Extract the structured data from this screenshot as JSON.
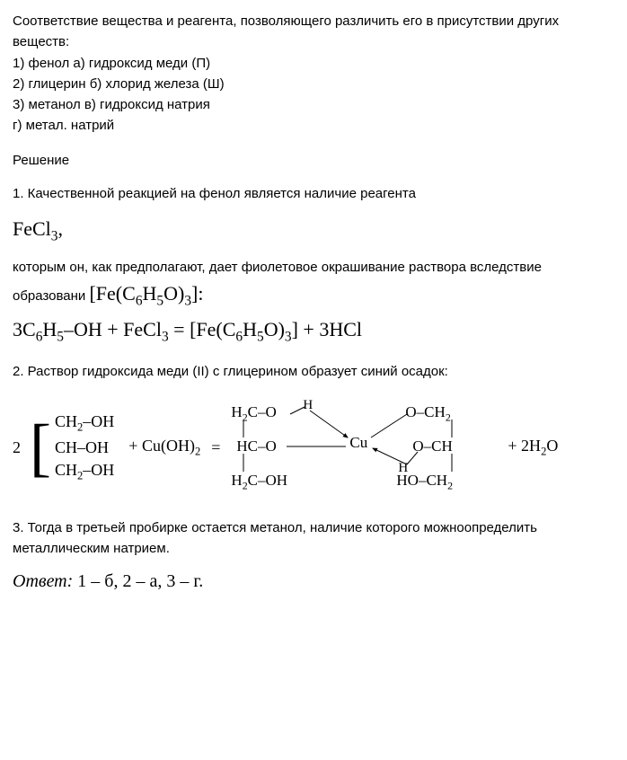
{
  "question": {
    "prompt": "Соответствие вещества и реагента, позволяющего различить его в присутствии других веществ:",
    "line1": "1) фенол а) гидроксид меди (П)",
    "line2": "2) глицерин б) хлорид железа (Ш)",
    "line3": "3) метанол в) гидроксид натрия",
    "line4": "г) метал. натрий"
  },
  "solution_label": "Решение",
  "step1": {
    "text_a": "1. Качественной реакцией на фенол является наличие реагента",
    "fecl3_html": "FeCl<sub>3</sub>,",
    "text_b": "которым он, как предполагают, дает фиолетовое окрашивание раствора вследствие образовани",
    "complex_html": "[Fe(C<sub>6</sub>H<sub>5</sub>O)<sub>3</sub>]:",
    "equation_html": "3C<sub>6</sub>H<sub>5</sub>–OH + FeCl<sub>3</sub> = [Fe(C<sub>6</sub>H<sub>5</sub>O)<sub>3</sub>] + 3HCl"
  },
  "step2": {
    "text": "2. Раствор гидроксида меди (II) с глицерином образует синий осадок:",
    "glycerol": {
      "coef": "2",
      "r1": "CH<sub>2</sub>–OH",
      "r2": "CH–OH",
      "r3": "CH<sub>2</sub>–OH"
    },
    "plus_cuoh_html": "+ Cu(OH)<sub>2</sub>",
    "eq": "=",
    "complex": {
      "ul": "H<sub>2</sub>C–O",
      "h_ul": "H",
      "ml": "HC–O",
      "ll": "H<sub>2</sub>C–OH",
      "cu": "Cu",
      "ur": "O–CH<sub>2</sub>",
      "mr": "O–CH",
      "h_mr": "H",
      "lr": "HO–CH<sub>2</sub>"
    },
    "tail_html": "+ 2H<sub>2</sub>O"
  },
  "step3": {
    "text": "3. Тогда в третьей пробирке остается метанол, наличие которого можноопределить металлическим натрием."
  },
  "answer_label": "Ответ:",
  "answer_value": "1 – б, 2 – а, 3 – г."
}
